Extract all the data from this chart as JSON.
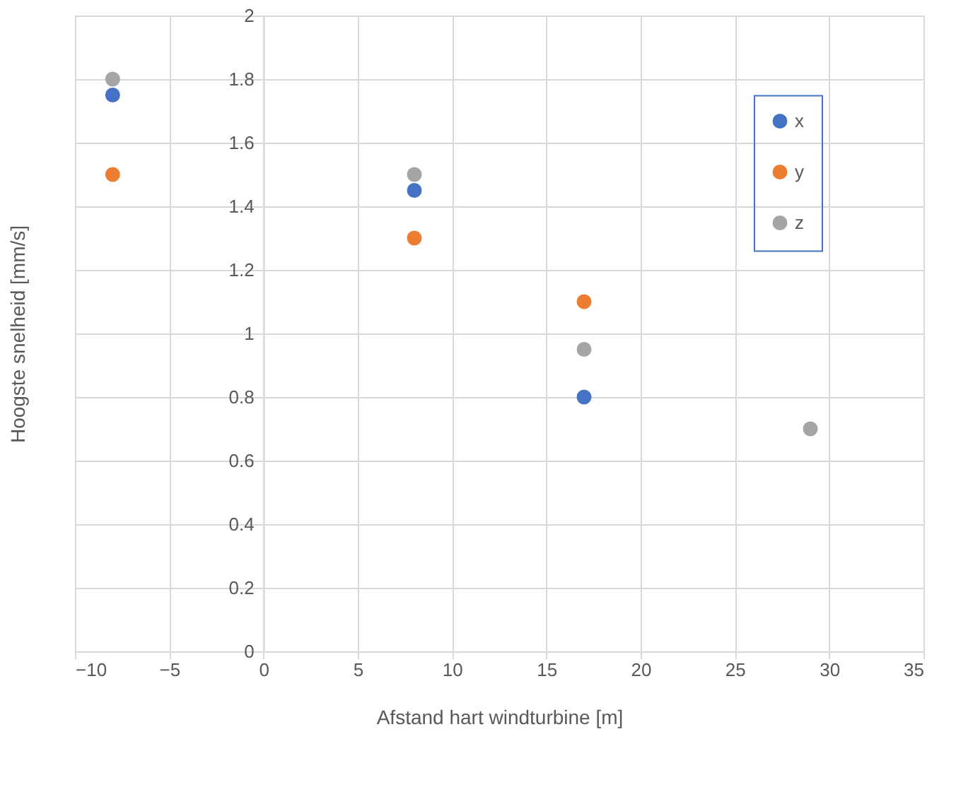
{
  "chart_data": {
    "type": "scatter",
    "xlabel": "Afstand hart windturbine [m]",
    "ylabel": "Hoogste snelheid [mm/s]",
    "x": [
      -8,
      8,
      17,
      29
    ],
    "series": [
      {
        "name": "x",
        "color": "#4472c4",
        "values": [
          1.75,
          1.45,
          0.8,
          null
        ]
      },
      {
        "name": "y",
        "color": "#ed7d31",
        "values": [
          1.5,
          1.3,
          1.1,
          null
        ]
      },
      {
        "name": "z",
        "color": "#a5a5a5",
        "values": [
          1.8,
          1.5,
          0.95,
          0.7
        ]
      }
    ],
    "xlim": [
      -10,
      35
    ],
    "xticks": [
      -10,
      -5,
      0,
      5,
      10,
      15,
      20,
      25,
      30,
      35
    ],
    "ylim": [
      0,
      2
    ],
    "yticks": [
      0,
      0.2,
      0.4,
      0.6,
      0.8,
      1,
      1.2,
      1.4,
      1.6,
      1.8,
      2
    ],
    "grid": true,
    "legend": "right",
    "marker": "circle"
  }
}
